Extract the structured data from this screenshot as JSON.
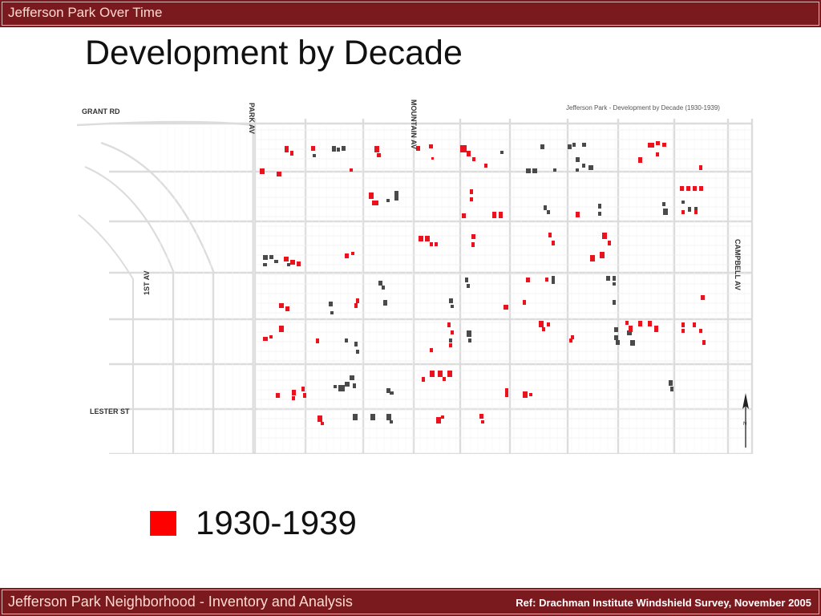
{
  "header": {
    "section": "Jefferson Park Over Time"
  },
  "slide": {
    "title": "Development by Decade"
  },
  "map": {
    "caption": "Jefferson Park - Development by Decade (1930-1939)",
    "streets": {
      "grant": "GRANT RD",
      "park": "PARK AV",
      "mountain": "MOUNTAIN AV",
      "first": "1ST AV",
      "campbell": "CAMPBELL AV",
      "lester": "LESTER ST"
    },
    "colors": {
      "decade": "#e8131c",
      "other": "#4a4a4a",
      "streets": "#dcdcdc"
    }
  },
  "legend": {
    "label": "1930-1939",
    "color": "#ff0000"
  },
  "footer": {
    "left": "Jefferson Park Neighborhood - Inventory and Analysis",
    "right": "Ref: Drachman Institute Windshield Survey, November 2005"
  }
}
